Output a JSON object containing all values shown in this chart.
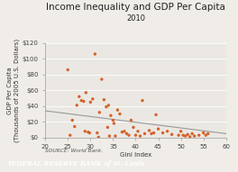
{
  "title": "Income Inequality and GDP Per Capita",
  "subtitle": "2010",
  "xlabel": "Gini Index",
  "ylabel": "GDP Per Capita\n(Thousands of 2005 U.S. Dollars)",
  "source": "SOURCE: World Bank.",
  "footer": "FEDERAL RESERVE BANK of St. Louis",
  "xlim": [
    20,
    60
  ],
  "ylim": [
    0,
    120
  ],
  "xticks": [
    20,
    25,
    30,
    35,
    40,
    45,
    50,
    55,
    60
  ],
  "yticks": [
    0,
    20,
    40,
    60,
    80,
    100,
    120
  ],
  "ytick_labels": [
    "$0",
    "$20",
    "$40",
    "$60",
    "$80",
    "$100",
    "$120"
  ],
  "scatter_data": [
    [
      25.0,
      86.0
    ],
    [
      25.5,
      3.0
    ],
    [
      26.0,
      22.0
    ],
    [
      26.5,
      14.0
    ],
    [
      27.0,
      41.0
    ],
    [
      27.5,
      52.0
    ],
    [
      28.0,
      47.0
    ],
    [
      28.5,
      46.0
    ],
    [
      28.8,
      8.0
    ],
    [
      29.0,
      57.0
    ],
    [
      29.5,
      7.0
    ],
    [
      29.8,
      6.0
    ],
    [
      30.0,
      45.0
    ],
    [
      30.5,
      49.0
    ],
    [
      31.0,
      106.0
    ],
    [
      31.5,
      6.0
    ],
    [
      31.8,
      0.5
    ],
    [
      32.0,
      32.0
    ],
    [
      32.5,
      74.0
    ],
    [
      33.0,
      48.0
    ],
    [
      33.5,
      39.0
    ],
    [
      33.8,
      13.0
    ],
    [
      34.0,
      41.0
    ],
    [
      34.2,
      2.0
    ],
    [
      34.5,
      28.0
    ],
    [
      35.0,
      22.0
    ],
    [
      35.2,
      18.0
    ],
    [
      35.5,
      2.0
    ],
    [
      36.0,
      35.0
    ],
    [
      36.5,
      30.0
    ],
    [
      37.0,
      7.0
    ],
    [
      37.5,
      8.0
    ],
    [
      38.0,
      5.0
    ],
    [
      38.5,
      3.0
    ],
    [
      39.0,
      22.0
    ],
    [
      39.5,
      13.0
    ],
    [
      40.0,
      3.0
    ],
    [
      40.5,
      8.0
    ],
    [
      41.0,
      2.0
    ],
    [
      41.5,
      47.0
    ],
    [
      42.0,
      5.0
    ],
    [
      43.0,
      9.0
    ],
    [
      43.5,
      5.0
    ],
    [
      44.0,
      6.0
    ],
    [
      44.5,
      29.0
    ],
    [
      45.0,
      11.0
    ],
    [
      46.0,
      6.0
    ],
    [
      47.0,
      8.0
    ],
    [
      48.0,
      4.0
    ],
    [
      49.5,
      3.0
    ],
    [
      50.0,
      8.0
    ],
    [
      50.5,
      3.0
    ],
    [
      51.0,
      2.0
    ],
    [
      51.5,
      4.0
    ],
    [
      52.0,
      1.0
    ],
    [
      52.5,
      5.0
    ],
    [
      53.0,
      2.0
    ],
    [
      54.0,
      3.0
    ],
    [
      55.0,
      6.0
    ],
    [
      55.5,
      3.0
    ],
    [
      56.0,
      5.0
    ]
  ],
  "dot_color": "#d4622a",
  "dot_size": 6,
  "line_x": [
    20,
    60
  ],
  "line_y": [
    34,
    5
  ],
  "line_color": "#999999",
  "background_color": "#f0ede8",
  "plot_bg": "#ebe8e3",
  "footer_bg": "#1b3a5c",
  "footer_text_color": "#ffffff",
  "title_fontsize": 7.5,
  "subtitle_fontsize": 6.0,
  "axis_label_fontsize": 5.0,
  "tick_fontsize": 5.0,
  "source_fontsize": 4.2
}
